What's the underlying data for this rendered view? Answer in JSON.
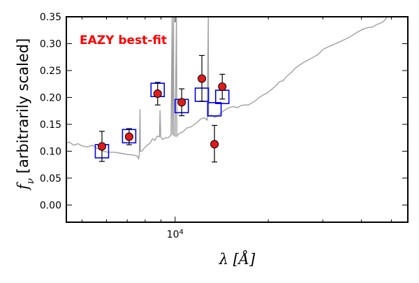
{
  "chart_data": {
    "type": "scatter",
    "title": "",
    "xlabel": "λ [Å]",
    "ylabel": "f_ν [arbitrarily scaled]",
    "xscale": "log",
    "xlim": [
      4450,
      56500
    ],
    "ylim": [
      -0.032,
      0.35
    ],
    "yticks": [
      "0.00",
      "0.05",
      "0.10",
      "0.15",
      "0.20",
      "0.25",
      "0.30",
      "0.35"
    ],
    "yticks_values": [
      0.0,
      0.05,
      0.1,
      0.15,
      0.2,
      0.25,
      0.3,
      0.35
    ],
    "xtick_labels": [
      {
        "value": 10000,
        "base": "10",
        "exp": "4"
      }
    ],
    "grid": false,
    "annotation": {
      "text": "EAZY best-fit",
      "color": "#ff0000"
    },
    "colors": {
      "model_line": "#a0a0a0",
      "observed_fill": "#e31a1c",
      "model_box": "#0000ee",
      "errorbar": "#000000"
    },
    "series": [
      {
        "type": "line",
        "description_key": "template",
        "points": [
          [
            4450,
            0.115
          ],
          [
            4550,
            0.117
          ],
          [
            4700,
            0.111
          ],
          [
            4850,
            0.114
          ],
          [
            5000,
            0.11
          ],
          [
            5200,
            0.108
          ],
          [
            5400,
            0.111
          ],
          [
            5600,
            0.105
          ],
          [
            5850,
            0.1
          ],
          [
            6100,
            0.098
          ],
          [
            6400,
            0.098
          ],
          [
            6700,
            0.096
          ],
          [
            7000,
            0.094
          ],
          [
            7300,
            0.093
          ],
          [
            7550,
            0.091
          ],
          [
            7620,
            0.086
          ],
          [
            7660,
            0.093
          ],
          [
            7700,
            0.178
          ],
          [
            7720,
            0.1
          ],
          [
            7800,
            0.1
          ],
          [
            7950,
            0.106
          ],
          [
            8150,
            0.112
          ],
          [
            8300,
            0.115
          ],
          [
            8450,
            0.123
          ],
          [
            8600,
            0.12
          ],
          [
            8750,
            0.128
          ],
          [
            8900,
            0.127
          ],
          [
            8940,
            0.176
          ],
          [
            8980,
            0.127
          ],
          [
            9100,
            0.122
          ],
          [
            9300,
            0.125
          ],
          [
            9500,
            0.125
          ],
          [
            9700,
            0.13
          ],
          [
            9780,
            0.35
          ],
          [
            9800,
            0.13
          ],
          [
            9880,
            0.35
          ],
          [
            9900,
            0.13
          ],
          [
            10000,
            0.128
          ],
          [
            10100,
            0.35
          ],
          [
            10130,
            0.128
          ],
          [
            10300,
            0.133
          ],
          [
            10600,
            0.136
          ],
          [
            10900,
            0.143
          ],
          [
            11200,
            0.145
          ],
          [
            11500,
            0.149
          ],
          [
            11800,
            0.154
          ],
          [
            12100,
            0.16
          ],
          [
            12400,
            0.162
          ],
          [
            12700,
            0.158
          ],
          [
            12800,
            0.355
          ],
          [
            12830,
            0.165
          ],
          [
            13100,
            0.167
          ],
          [
            13400,
            0.163
          ],
          [
            13700,
            0.165
          ],
          [
            14100,
            0.172
          ],
          [
            14500,
            0.177
          ],
          [
            14900,
            0.181
          ],
          [
            15400,
            0.183
          ],
          [
            15900,
            0.181
          ],
          [
            16300,
            0.185
          ],
          [
            16800,
            0.186
          ],
          [
            17300,
            0.186
          ],
          [
            17700,
            0.19
          ],
          [
            18200,
            0.194
          ],
          [
            18700,
            0.2
          ],
          [
            19300,
            0.205
          ],
          [
            19800,
            0.208
          ],
          [
            20400,
            0.214
          ],
          [
            21000,
            0.22
          ],
          [
            21700,
            0.229
          ],
          [
            22300,
            0.231
          ],
          [
            23000,
            0.24
          ],
          [
            23700,
            0.246
          ],
          [
            24400,
            0.254
          ],
          [
            25200,
            0.26
          ],
          [
            26000,
            0.265
          ],
          [
            27000,
            0.27
          ],
          [
            28000,
            0.275
          ],
          [
            29000,
            0.28
          ],
          [
            30000,
            0.289
          ],
          [
            31500,
            0.295
          ],
          [
            33000,
            0.3
          ],
          [
            34500,
            0.305
          ],
          [
            36000,
            0.31
          ],
          [
            37500,
            0.316
          ],
          [
            39000,
            0.322
          ],
          [
            40500,
            0.327
          ],
          [
            42000,
            0.33
          ],
          [
            43500,
            0.331
          ],
          [
            45000,
            0.336
          ],
          [
            46500,
            0.339
          ],
          [
            47500,
            0.343
          ],
          [
            48500,
            0.35
          ]
        ]
      },
      {
        "type": "scatter",
        "description_key": "model_photometry",
        "points": [
          [
            5800,
            0.1
          ],
          [
            7100,
            0.128
          ],
          [
            8780,
            0.214
          ],
          [
            10500,
            0.184
          ],
          [
            12200,
            0.205
          ],
          [
            13400,
            0.178
          ],
          [
            14200,
            0.201
          ]
        ]
      },
      {
        "type": "scatter",
        "description_key": "observed_photometry",
        "points": [
          [
            5800,
            0.109,
            0.081,
            0.137
          ],
          [
            7100,
            0.127,
            0.112,
            0.142
          ],
          [
            8780,
            0.207,
            0.186,
            0.228
          ],
          [
            10500,
            0.191,
            0.166,
            0.216
          ],
          [
            12200,
            0.235,
            0.193,
            0.278
          ],
          [
            13400,
            0.113,
            0.08,
            0.148
          ],
          [
            14200,
            0.22,
            0.197,
            0.243
          ]
        ]
      }
    ]
  }
}
